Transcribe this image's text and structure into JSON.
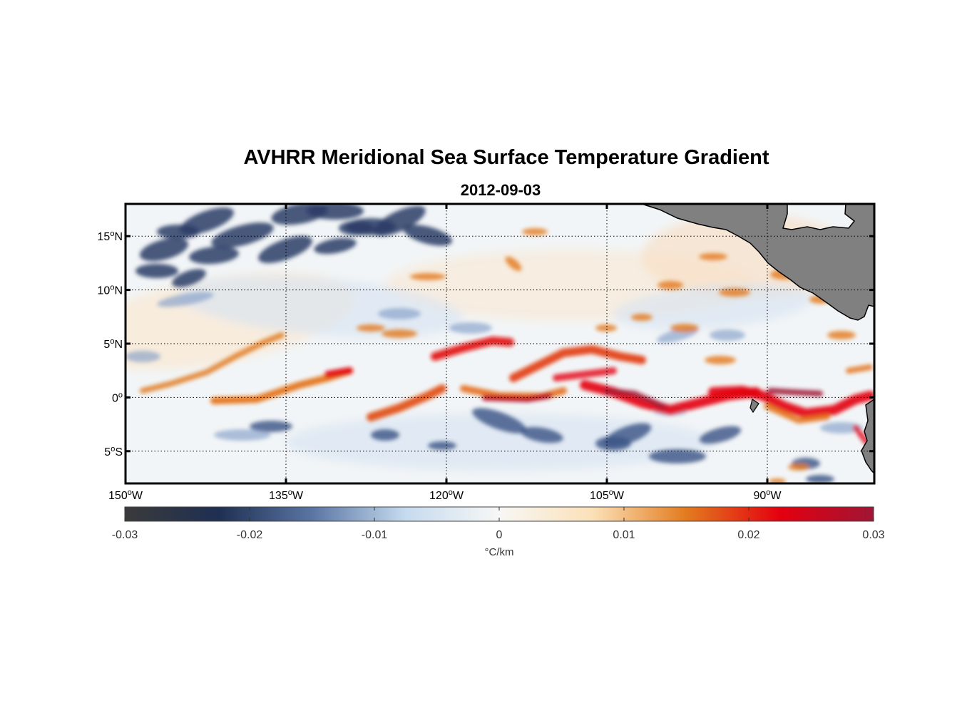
{
  "title": "AVHRR Meridional Sea Surface Temperature Gradient",
  "subtitle": "2012-09-03",
  "map": {
    "lon_range": [
      -150,
      -80
    ],
    "lat_range": [
      -8,
      18
    ],
    "lat_ticks": [
      {
        "value": 15,
        "num": "15",
        "hem": "N"
      },
      {
        "value": 10,
        "num": "10",
        "hem": "N"
      },
      {
        "value": 5,
        "num": "5",
        "hem": "N"
      },
      {
        "value": 0,
        "num": "0",
        "hem": ""
      },
      {
        "value": -5,
        "num": "5",
        "hem": "S"
      }
    ],
    "lon_ticks": [
      {
        "value": -150,
        "num": "150",
        "hem": "W"
      },
      {
        "value": -135,
        "num": "135",
        "hem": "W"
      },
      {
        "value": -120,
        "num": "120",
        "hem": "W"
      },
      {
        "value": -105,
        "num": "105",
        "hem": "W"
      },
      {
        "value": -90,
        "num": "90",
        "hem": "W"
      }
    ],
    "grid": true,
    "land_color": "#808080"
  },
  "colorbar": {
    "min": -0.03,
    "max": 0.03,
    "ticks": [
      "-0.03",
      "-0.02",
      "-0.01",
      "0",
      "0.01",
      "0.02",
      "0.03"
    ],
    "unit": "°C/km",
    "colors": [
      "#3a3a3a",
      "#1f2f52",
      "#5a75a3",
      "#c6dbef",
      "#f7f7f5",
      "#fbe1b8",
      "#e37b1e",
      "#e4000f",
      "#a01535"
    ]
  }
}
